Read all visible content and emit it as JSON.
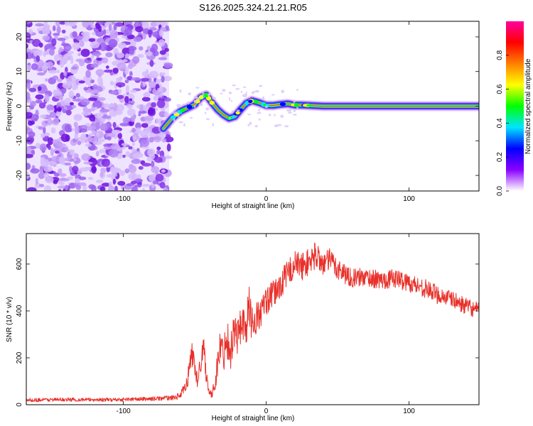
{
  "figure_title": "S126.2025.324.21.21.R05",
  "chart_data": [
    {
      "type": "heatmap",
      "title": "S126.2025.324.21.21.R05",
      "xlabel": "Height of straight line (km)",
      "ylabel": "Frequency (Hz)",
      "xlim": [
        -168,
        149
      ],
      "ylim": [
        -24.5,
        24.5
      ],
      "xticks": [
        -100,
        0,
        100
      ],
      "yticks": [
        -20,
        -10,
        0,
        10,
        20
      ],
      "noise_region_x": [
        -168,
        -68
      ],
      "ridge_x": [
        -72,
        -66,
        -60,
        -55,
        -50,
        -46,
        -42,
        -38,
        -34,
        -30,
        -26,
        -22,
        -18,
        -14,
        -10,
        -5,
        0,
        5,
        10,
        15,
        20,
        25,
        30,
        40,
        60,
        80,
        100,
        120,
        149
      ],
      "ridge_hz": [
        -6.5,
        -3.5,
        -1.5,
        -0.5,
        0.5,
        2.5,
        3.2,
        1.0,
        -1.0,
        -2.5,
        -3.5,
        -3.0,
        -1.0,
        0.8,
        1.6,
        1.0,
        0.2,
        0.2,
        0.5,
        0.7,
        0.3,
        0.3,
        0.2,
        0.0,
        0.0,
        0.0,
        0.0,
        0.0,
        0.0
      ],
      "colorbar": {
        "label": "Normalized spectral amplitude",
        "range": [
          0.0,
          1.0
        ],
        "ticks": [
          "0.0",
          "0.2",
          "0.4",
          "0.6",
          "0.8"
        ],
        "colors": [
          "#ffffff",
          "#8a00ff",
          "#0000ff",
          "#00e5ff",
          "#00ff00",
          "#ffff00",
          "#ff8000",
          "#ff0000",
          "#ff00a0"
        ]
      }
    },
    {
      "type": "line",
      "xlabel": "Height of straight line (km)",
      "ylabel": "SNR (10 * v/v)",
      "xlim": [
        -168,
        149
      ],
      "ylim": [
        0,
        730
      ],
      "xticks": [
        -100,
        0,
        100
      ],
      "yticks": [
        0,
        200,
        400,
        600
      ],
      "series": [
        {
          "name": "SNR",
          "color": "#e8302a",
          "x": [
            -168,
            -140,
            -110,
            -80,
            -65,
            -60,
            -56,
            -52,
            -50,
            -48,
            -46,
            -44,
            -42,
            -40,
            -38,
            -35,
            -32,
            -30,
            -28,
            -25,
            -22,
            -20,
            -17,
            -15,
            -12,
            -10,
            -5,
            0,
            5,
            10,
            15,
            20,
            25,
            30,
            35,
            40,
            45,
            50,
            55,
            60,
            70,
            80,
            90,
            100,
            110,
            120,
            130,
            140,
            149
          ],
          "y": [
            20,
            22,
            21,
            25,
            30,
            40,
            80,
            220,
            170,
            90,
            180,
            260,
            130,
            60,
            35,
            130,
            260,
            200,
            300,
            230,
            330,
            280,
            380,
            300,
            420,
            350,
            380,
            440,
            470,
            510,
            560,
            600,
            590,
            610,
            640,
            600,
            620,
            580,
            560,
            540,
            545,
            530,
            540,
            520,
            500,
            470,
            450,
            420,
            400
          ],
          "spread": [
            8,
            8,
            8,
            9,
            10,
            15,
            30,
            60,
            50,
            30,
            50,
            60,
            40,
            20,
            15,
            50,
            80,
            70,
            90,
            80,
            90,
            90,
            100,
            90,
            90,
            80,
            70,
            60,
            60,
            60,
            60,
            60,
            60,
            60,
            60,
            50,
            50,
            50,
            45,
            40,
            40,
            40,
            40,
            40,
            40,
            40,
            35,
            35,
            35
          ]
        }
      ]
    }
  ]
}
